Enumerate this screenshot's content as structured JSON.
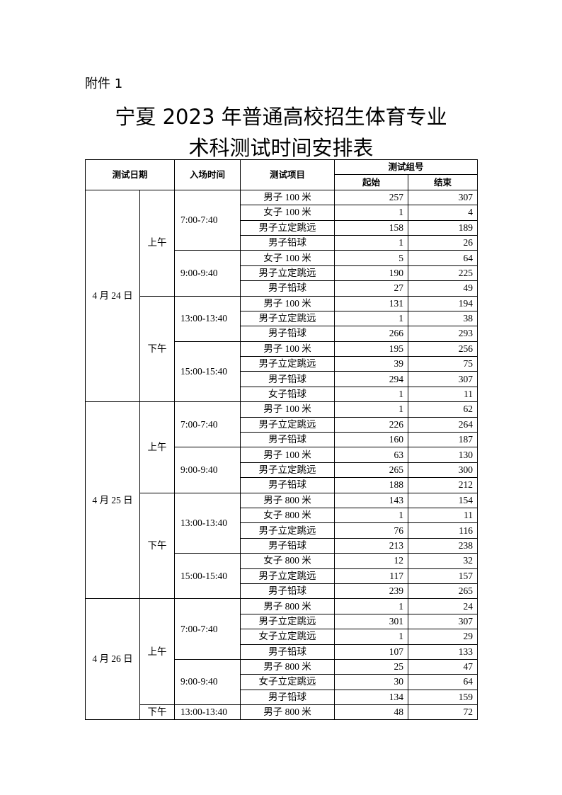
{
  "attachment_label": "附件 1",
  "title_line1": "宁夏 2023 年普通高校招生体育专业",
  "title_line2": "术科测试时间安排表",
  "headers": {
    "date": "测试日期",
    "entry_time": "入场时间",
    "event": "测试项目",
    "group_no": "测试组号",
    "start": "起始",
    "end": "结束"
  },
  "schedule": [
    {
      "date": "4 月 24 日",
      "periods": [
        {
          "period": "上午",
          "slots": [
            {
              "time": "7:00-7:40",
              "items": [
                {
                  "event": "男子 100 米",
                  "start": "257",
                  "end": "307"
                },
                {
                  "event": "女子 100 米",
                  "start": "1",
                  "end": "4"
                },
                {
                  "event": "男子立定跳远",
                  "start": "158",
                  "end": "189"
                },
                {
                  "event": "男子铅球",
                  "start": "1",
                  "end": "26"
                }
              ]
            },
            {
              "time": "9:00-9:40",
              "items": [
                {
                  "event": "女子 100 米",
                  "start": "5",
                  "end": "64"
                },
                {
                  "event": "男子立定跳远",
                  "start": "190",
                  "end": "225"
                },
                {
                  "event": "男子铅球",
                  "start": "27",
                  "end": "49"
                }
              ]
            }
          ]
        },
        {
          "period": "下午",
          "slots": [
            {
              "time": "13:00-13:40",
              "items": [
                {
                  "event": "男子 100 米",
                  "start": "131",
                  "end": "194"
                },
                {
                  "event": "男子立定跳远",
                  "start": "1",
                  "end": "38"
                },
                {
                  "event": "男子铅球",
                  "start": "266",
                  "end": "293"
                }
              ]
            },
            {
              "time": "15:00-15:40",
              "items": [
                {
                  "event": "男子 100 米",
                  "start": "195",
                  "end": "256"
                },
                {
                  "event": "男子立定跳远",
                  "start": "39",
                  "end": "75"
                },
                {
                  "event": "男子铅球",
                  "start": "294",
                  "end": "307"
                },
                {
                  "event": "女子铅球",
                  "start": "1",
                  "end": "11"
                }
              ]
            }
          ]
        }
      ]
    },
    {
      "date": "4 月 25 日",
      "periods": [
        {
          "period": "上午",
          "slots": [
            {
              "time": "7:00-7:40",
              "items": [
                {
                  "event": "男子 100 米",
                  "start": "1",
                  "end": "62"
                },
                {
                  "event": "男子立定跳远",
                  "start": "226",
                  "end": "264"
                },
                {
                  "event": "男子铅球",
                  "start": "160",
                  "end": "187"
                }
              ]
            },
            {
              "time": "9:00-9:40",
              "items": [
                {
                  "event": "男子 100 米",
                  "start": "63",
                  "end": "130"
                },
                {
                  "event": "男子立定跳远",
                  "start": "265",
                  "end": "300"
                },
                {
                  "event": "男子铅球",
                  "start": "188",
                  "end": "212"
                }
              ]
            }
          ]
        },
        {
          "period": "下午",
          "slots": [
            {
              "time": "13:00-13:40",
              "items": [
                {
                  "event": "男子 800 米",
                  "start": "143",
                  "end": "154"
                },
                {
                  "event": "女子 800 米",
                  "start": "1",
                  "end": "11"
                },
                {
                  "event": "男子立定跳远",
                  "start": "76",
                  "end": "116"
                },
                {
                  "event": "男子铅球",
                  "start": "213",
                  "end": "238"
                }
              ]
            },
            {
              "time": "15:00-15:40",
              "items": [
                {
                  "event": "女子 800 米",
                  "start": "12",
                  "end": "32"
                },
                {
                  "event": "男子立定跳远",
                  "start": "117",
                  "end": "157"
                },
                {
                  "event": "男子铅球",
                  "start": "239",
                  "end": "265"
                }
              ]
            }
          ]
        }
      ]
    },
    {
      "date": "4 月 26 日",
      "periods": [
        {
          "period": "上午",
          "slots": [
            {
              "time": "7:00-7:40",
              "items": [
                {
                  "event": "男子 800 米",
                  "start": "1",
                  "end": "24"
                },
                {
                  "event": "男子立定跳远",
                  "start": "301",
                  "end": "307"
                },
                {
                  "event": "女子立定跳远",
                  "start": "1",
                  "end": "29"
                },
                {
                  "event": "男子铅球",
                  "start": "107",
                  "end": "133"
                }
              ]
            },
            {
              "time": "9:00-9:40",
              "items": [
                {
                  "event": "男子 800 米",
                  "start": "25",
                  "end": "47"
                },
                {
                  "event": "女子立定跳远",
                  "start": "30",
                  "end": "64"
                },
                {
                  "event": "男子铅球",
                  "start": "134",
                  "end": "159"
                }
              ]
            }
          ]
        },
        {
          "period": "下午",
          "slots": [
            {
              "time": "13:00-13:40",
              "items": [
                {
                  "event": "男子 800 米",
                  "start": "48",
                  "end": "72"
                }
              ]
            }
          ]
        }
      ]
    }
  ]
}
